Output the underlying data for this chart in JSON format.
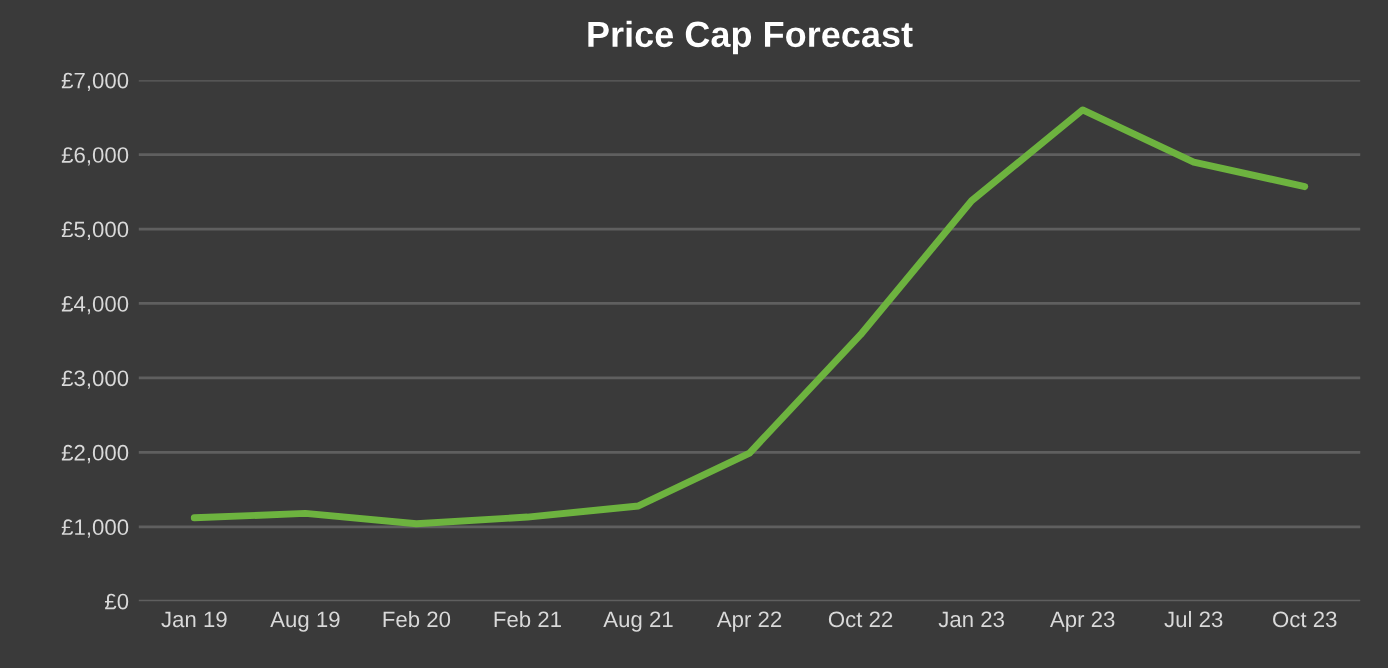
{
  "chart_data": {
    "type": "line",
    "title": "Price Cap Forecast",
    "categories": [
      "Jan 19",
      "Aug 19",
      "Feb 20",
      "Feb 21",
      "Aug 21",
      "Apr 22",
      "Oct 22",
      "Jan 23",
      "Apr 23",
      "Jul 23",
      "Oct 23"
    ],
    "series": [
      {
        "color": "#6db33f",
        "values": [
          1120,
          1180,
          1040,
          1130,
          1280,
          1990,
          3580,
          5380,
          6600,
          5900,
          5570
        ]
      }
    ],
    "ylim": [
      0,
      7000
    ],
    "yticks": [
      {
        "value": 0,
        "label": "£0"
      },
      {
        "value": 1000,
        "label": "£1,000"
      },
      {
        "value": 2000,
        "label": "£2,000"
      },
      {
        "value": 3000,
        "label": "£3,000"
      },
      {
        "value": 4000,
        "label": "£4,000"
      },
      {
        "value": 5000,
        "label": "£5,000"
      },
      {
        "value": 6000,
        "label": "£6,000"
      },
      {
        "value": 7000,
        "label": "£7,000"
      }
    ],
    "grid": "y",
    "marker": "none",
    "line_style": "solid"
  }
}
